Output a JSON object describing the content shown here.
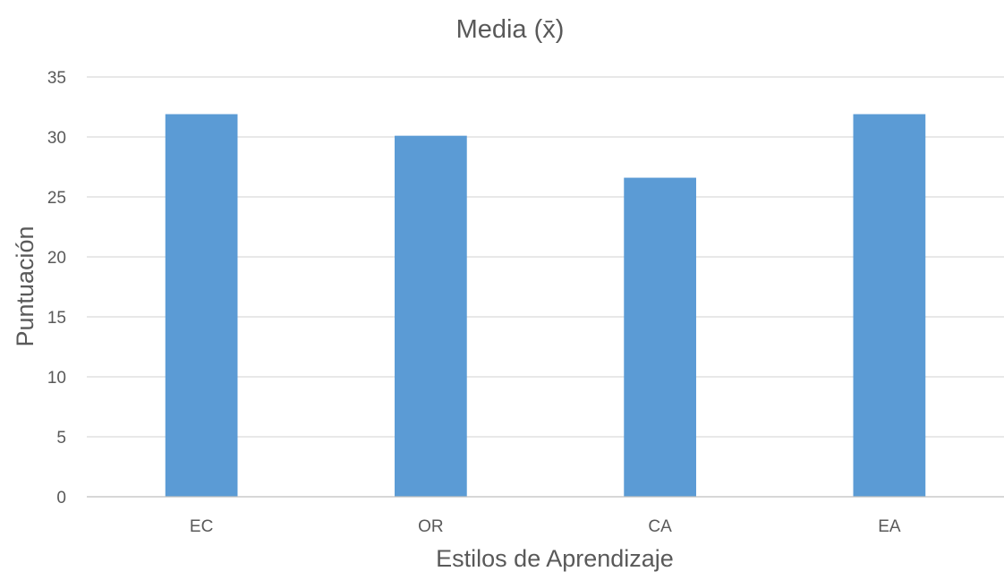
{
  "chart_data": {
    "type": "bar",
    "title": "Media (x̄)",
    "xlabel": "Estilos de Aprendizaje",
    "ylabel": "Puntuación",
    "categories": [
      "EC",
      "OR",
      "CA",
      "EA"
    ],
    "values": [
      31.9,
      30.1,
      26.6,
      31.9
    ],
    "ylim": [
      0,
      35
    ],
    "yticks": [
      0,
      5,
      10,
      15,
      20,
      25,
      30,
      35
    ],
    "grid": true,
    "legend": "none",
    "colors": {
      "bar": "#5B9BD5",
      "grid": "#D9D9D9",
      "axis": "#BFBFBF",
      "tick_text": "#595959",
      "title_text": "#595959"
    }
  }
}
